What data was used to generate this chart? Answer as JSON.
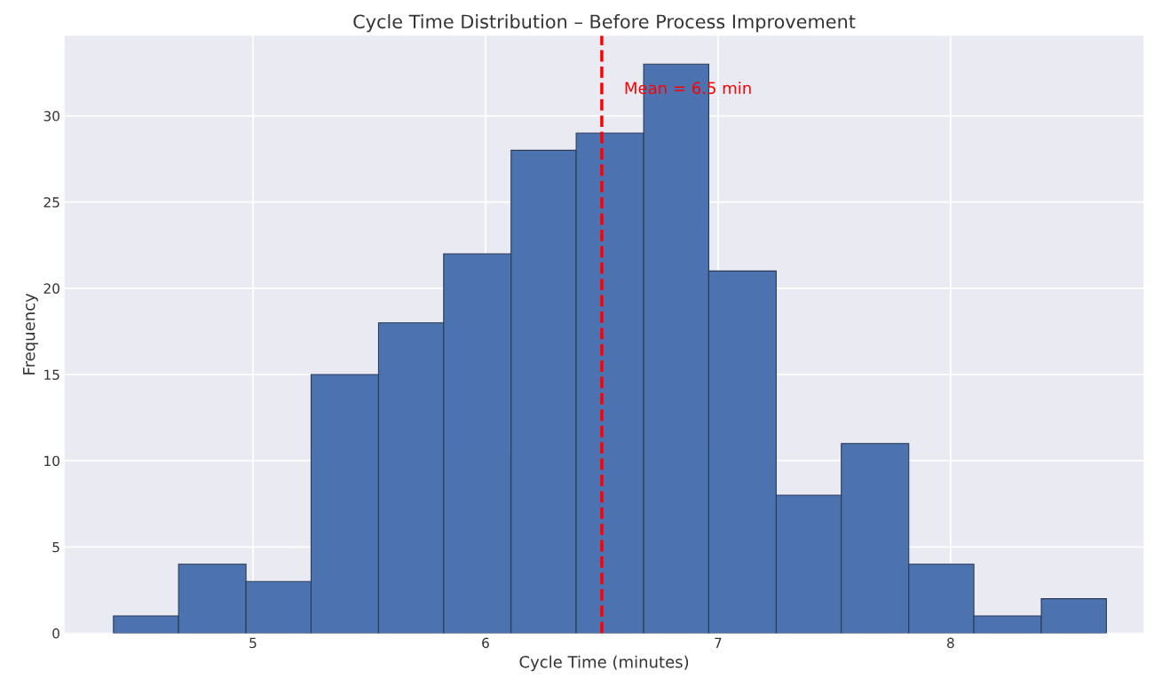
{
  "chart_data": {
    "type": "histogram",
    "title": "Cycle Time Distribution – Before Process Improvement",
    "xlabel": "Cycle Time (minutes)",
    "ylabel": "Frequency",
    "bins": [
      4.4,
      4.68,
      4.97,
      5.25,
      5.54,
      5.82,
      6.11,
      6.39,
      6.68,
      6.96,
      7.25,
      7.53,
      7.82,
      8.1,
      8.39,
      8.67
    ],
    "values": [
      1,
      4,
      3,
      15,
      18,
      22,
      28,
      29,
      33,
      21,
      8,
      11,
      4,
      1,
      2
    ],
    "color": "#4c72b0",
    "xlim": [
      4.19,
      8.83
    ],
    "ylim": [
      0,
      34.65
    ],
    "xticks": [
      5,
      6,
      7,
      8
    ],
    "yticks": [
      0,
      5,
      10,
      15,
      20,
      25,
      30
    ],
    "grid": true,
    "ref_lines": [
      {
        "axis": "x",
        "value": 6.5,
        "color": "#ff0000",
        "line_style": "dashed",
        "label": "Mean = 6.5 min"
      }
    ]
  }
}
